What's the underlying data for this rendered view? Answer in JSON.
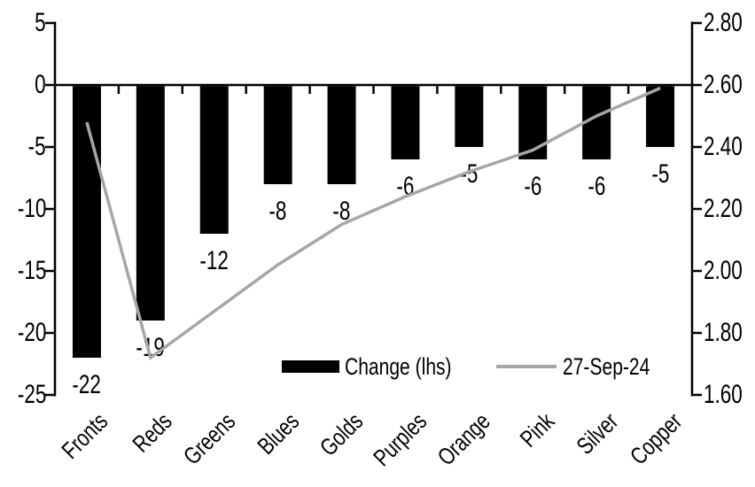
{
  "chart_data": {
    "type": "combo-bar-line",
    "title": "",
    "xlabel": "",
    "ylabel": "",
    "grid": false,
    "background": "#ffffff",
    "axis_color": "#000000",
    "categories": [
      "Fronts",
      "Reds",
      "Greens",
      "Blues",
      "Golds",
      "Purples",
      "Orange",
      "Pink",
      "Silver",
      "Copper"
    ],
    "series": [
      {
        "name": "Change (lhs)",
        "type": "bar",
        "axis": "lhs",
        "color": "#000000",
        "values": [
          -22,
          -19,
          -12,
          -8,
          -8,
          -6,
          -5,
          -6,
          -6,
          -5
        ],
        "data_labels": [
          "-22",
          "-19",
          "-12",
          "-8",
          "-8",
          "-6",
          "-5",
          "-6",
          "-6",
          "-5"
        ]
      },
      {
        "name": "27-Sep-24",
        "type": "line",
        "axis": "rhs",
        "color": "#a6a6a6",
        "values": [
          2.48,
          1.72,
          1.87,
          2.02,
          2.15,
          2.24,
          2.32,
          2.39,
          2.5,
          2.59
        ]
      }
    ],
    "left_axis": {
      "min": -25,
      "max": 5,
      "tick_step": 5,
      "tick_labels": [
        "5",
        "0",
        "-5",
        "-10",
        "-15",
        "-20",
        "-25"
      ]
    },
    "right_axis": {
      "min": 1.6,
      "max": 2.8,
      "tick_step": 0.2,
      "tick_labels": [
        "2.80",
        "2.60",
        "2.40",
        "2.20",
        "2.00",
        "1.80",
        "1.60"
      ]
    },
    "legend": {
      "position": "bottom-inside",
      "items": [
        {
          "label": "Change (lhs)",
          "swatch": "bar",
          "color": "#000000"
        },
        {
          "label": "27-Sep-24",
          "swatch": "line",
          "color": "#a6a6a6"
        }
      ]
    }
  }
}
